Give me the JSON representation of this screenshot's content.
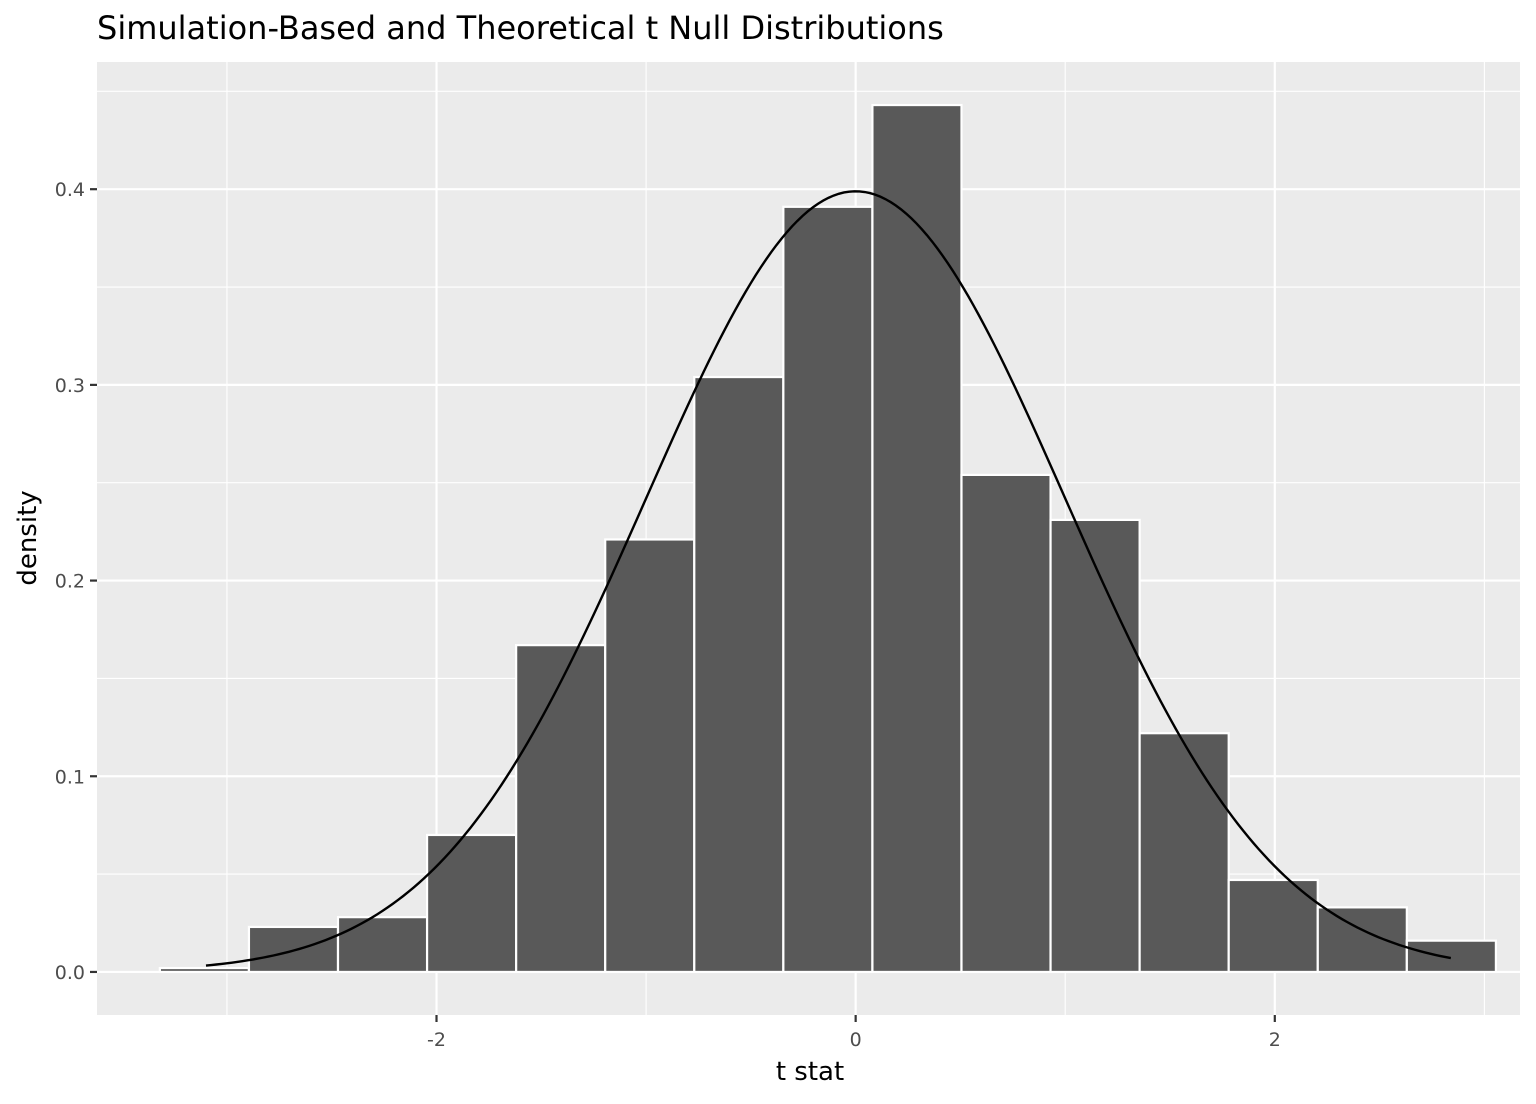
{
  "chart_data": {
    "type": "bar",
    "title": "Simulation-Based and Theoretical t Null Distributions",
    "xlabel": "t stat",
    "ylabel": "density",
    "xlim": [
      -3.62,
      3.17
    ],
    "ylim": [
      -0.022,
      0.465
    ],
    "x_ticks": [
      -2,
      0,
      2
    ],
    "x_tick_labels": [
      "-2",
      "0",
      "2"
    ],
    "y_ticks": [
      0.0,
      0.1,
      0.2,
      0.3,
      0.4
    ],
    "y_tick_labels": [
      "0.0",
      "0.1",
      "0.2",
      "0.3",
      "0.4"
    ],
    "grid": true,
    "colors": {
      "panel_background": "#ebebeb",
      "grid": "#ffffff",
      "bar_fill": "#595959",
      "bar_outline": "#ffffff",
      "curve": "#000000",
      "tick_text": "#4d4d4d"
    },
    "series": [
      {
        "type": "histogram",
        "bin_edges": [
          -3.32,
          -2.895,
          -2.47,
          -2.045,
          -1.62,
          -1.195,
          -0.77,
          -0.345,
          0.08,
          0.505,
          0.93,
          1.355,
          1.78,
          2.205,
          2.63,
          3.055
        ],
        "values": [
          0.002,
          0.023,
          0.028,
          0.07,
          0.167,
          0.221,
          0.304,
          0.391,
          0.443,
          0.254,
          0.231,
          0.122,
          0.047,
          0.033,
          0.016
        ]
      },
      {
        "type": "line",
        "function": "standard normal density",
        "x_range": [
          -3.1,
          2.84
        ]
      }
    ]
  }
}
